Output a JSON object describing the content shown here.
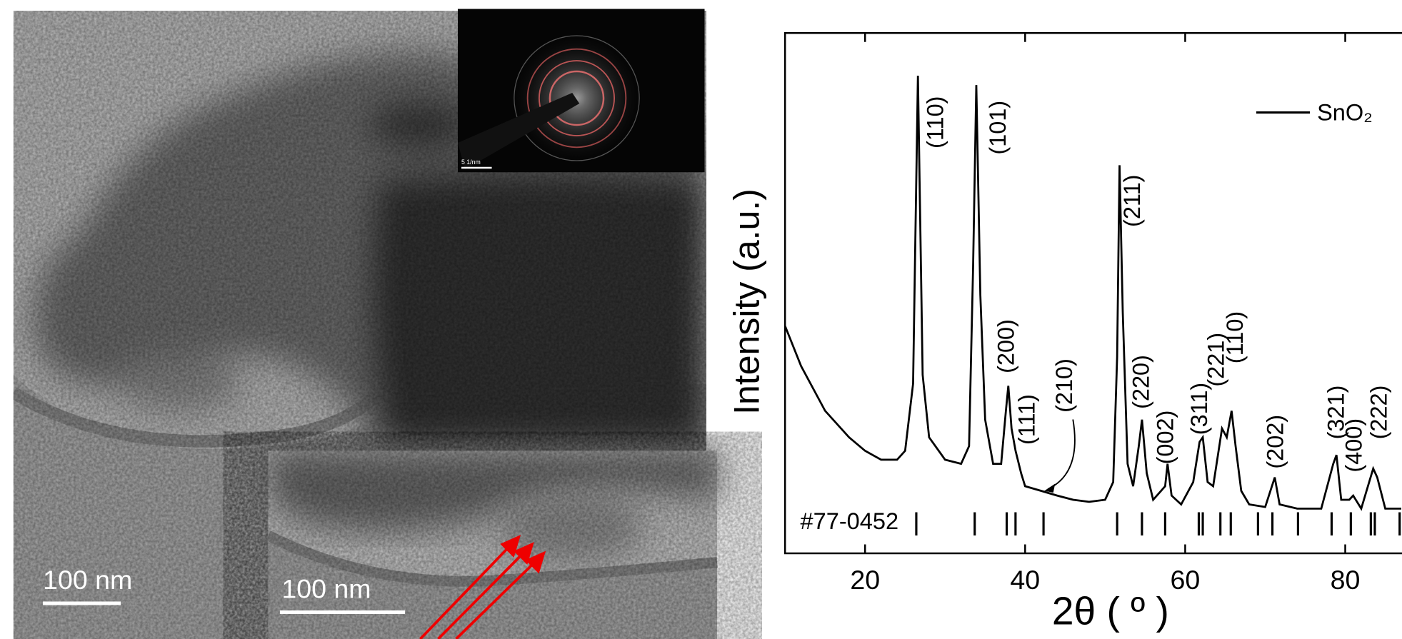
{
  "images": {
    "scale_bar_main": "100 nm",
    "scale_bar_inset": "100 nm",
    "saed_scale": "5 1/nm"
  },
  "chart_data": {
    "type": "line",
    "xlabel": "2θ ( º )",
    "ylabel": "Intensity (a.u.)",
    "xlim": [
      10,
      90
    ],
    "ylim": [
      0,
      100
    ],
    "xticks": [
      20,
      40,
      60,
      80
    ],
    "legend": "top-right",
    "x": [
      10,
      12,
      15,
      18,
      20,
      22,
      24,
      25,
      26,
      26.6,
      27.2,
      28,
      30,
      32,
      33,
      33.5,
      33.9,
      34.4,
      35,
      36,
      37,
      37.6,
      37.9,
      38.3,
      38.8,
      39.5,
      40,
      42,
      44,
      46,
      48,
      50,
      51,
      51.5,
      51.8,
      52.2,
      52.8,
      53.5,
      54.2,
      54.6,
      55.2,
      56,
      57.5,
      57.8,
      58.3,
      59.5,
      61,
      61.8,
      62.2,
      62.8,
      63.5,
      64.6,
      65.2,
      65.8,
      66.3,
      67,
      68,
      70,
      71.2,
      71.8,
      74,
      77,
      78.5,
      78.9,
      79.5,
      80.5,
      81,
      82,
      83.5,
      84,
      85,
      87
    ],
    "series": [
      {
        "name": "SnO₂",
        "color": "#000000",
        "values": [
          43.7,
          36,
          27.4,
          22.3,
          19.7,
          18,
          18,
          19.7,
          32.6,
          91.8,
          34.3,
          22.3,
          18,
          17.2,
          20.6,
          54.9,
          90,
          49.7,
          25.7,
          17.2,
          17.2,
          27.4,
          32.2,
          24,
          19.7,
          15.4,
          12.9,
          12,
          11.1,
          10.3,
          9.9,
          10.3,
          13.7,
          37.7,
          74.6,
          46.3,
          17.2,
          12.9,
          20.6,
          25.7,
          15.4,
          10.3,
          12.9,
          17.2,
          11.1,
          9.4,
          13.7,
          21.4,
          22.3,
          13.7,
          12.9,
          24,
          22.3,
          27.4,
          20.6,
          12,
          9.4,
          8.9,
          14.6,
          9.4,
          8.6,
          8.6,
          17.2,
          18.9,
          10.3,
          10.3,
          11.1,
          8.6,
          16.3,
          14.6,
          8.6,
          8.6
        ]
      }
    ],
    "reference_label": "#77-0452",
    "reference_peaks": [
      26.4,
      33.7,
      37.7,
      38.8,
      42.3,
      51.5,
      54.6,
      57.5,
      61.7,
      62.2,
      64.4,
      65.7,
      69.1,
      70.9,
      74.1,
      78.3,
      80.7,
      83.2,
      83.7,
      86.8
    ],
    "peak_labels": [
      "(110)",
      "(101)",
      "(200)",
      "(111)",
      "(210)",
      "(211)",
      "(220)",
      "(002)",
      "(311)",
      "(221)",
      "(110)",
      "(202)",
      "(321)",
      "(400)",
      "(222)"
    ]
  }
}
